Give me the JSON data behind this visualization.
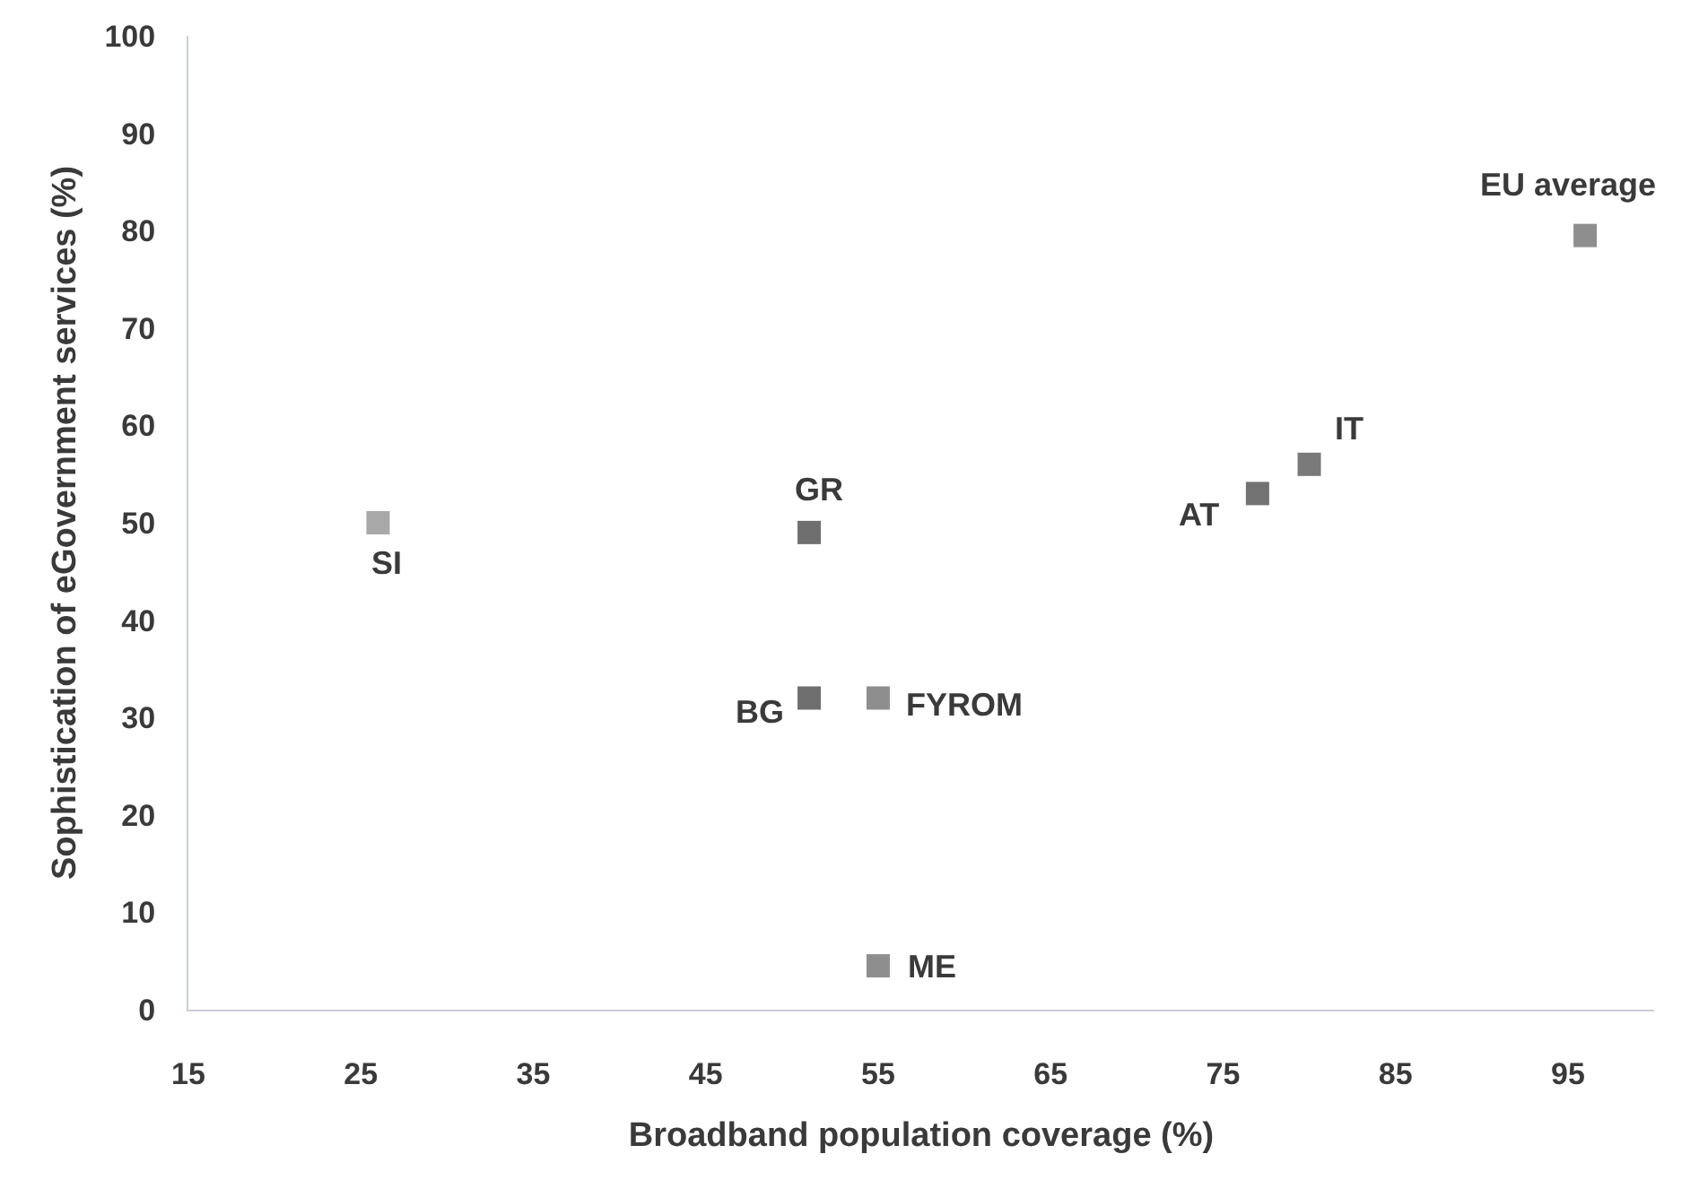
{
  "chart_data": {
    "type": "scatter",
    "xlabel": "Broadband population coverage (%)",
    "ylabel": "Sophistication of eGovernment services (%)",
    "x": [
      26,
      51,
      51,
      55,
      55,
      77,
      80,
      96
    ],
    "values": [
      50,
      49,
      32,
      32,
      4.5,
      53,
      56,
      79.5
    ],
    "colors": [
      "#a8a8a8",
      "#6f6f6f",
      "#6f6f6f",
      "#8e8e8e",
      "#8e8e8e",
      "#727272",
      "#7a7a7a",
      "#8e8e8e"
    ],
    "marker": "square",
    "xlim": [
      15,
      100
    ],
    "xticks": [
      15,
      25,
      35,
      45,
      55,
      65,
      75,
      85,
      95
    ],
    "ylim": [
      0,
      100
    ],
    "yticks": [
      0,
      10,
      20,
      30,
      40,
      50,
      60,
      70,
      80,
      90,
      100
    ],
    "grid": false,
    "annotations": [
      {
        "text": "SI",
        "x": 26,
        "y": 50
      },
      {
        "text": "GR",
        "x": 51,
        "y": 49
      },
      {
        "text": "BG",
        "x": 51,
        "y": 32
      },
      {
        "text": "FYROM",
        "x": 55,
        "y": 32
      },
      {
        "text": "ME",
        "x": 55,
        "y": 4.5
      },
      {
        "text": "AT",
        "x": 77,
        "y": 53
      },
      {
        "text": "IT",
        "x": 80,
        "y": 56
      },
      {
        "text": "EU average",
        "x": 96,
        "y": 79.5
      }
    ]
  }
}
